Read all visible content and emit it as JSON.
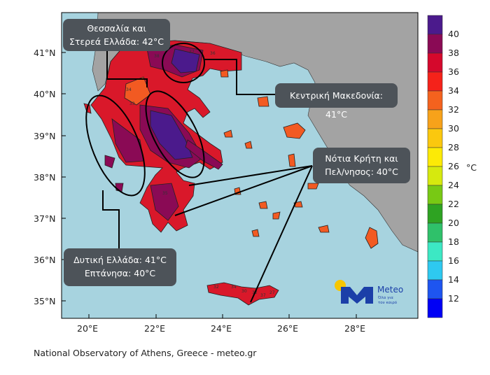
{
  "map": {
    "lat_ticks": [
      "41°N",
      "40°N",
      "39°N",
      "38°N",
      "37°N",
      "36°N",
      "35°N"
    ],
    "lon_ticks": [
      "20°E",
      "22°E",
      "24°E",
      "26°E",
      "28°E"
    ],
    "colors": {
      "sea": "#a7d3df",
      "foreign_land": "#a3a3a3",
      "hot": "#d9182a",
      "very_hot": "#8a0a55",
      "extreme": "#4b1a8c",
      "warm": "#f25a22"
    },
    "station_values": [
      "37",
      "36",
      "38",
      "34",
      "33",
      "35",
      "32",
      "34",
      "30",
      "32",
      "37",
      "27"
    ]
  },
  "annotations": [
    {
      "line1": "Θεσσαλία και",
      "line2": "Στερεά Ελλάδα: 42°C"
    },
    {
      "line1": "Κεντρική Μακεδονία: 41°C",
      "line2": ""
    },
    {
      "line1": "Νότια Κρήτη και",
      "line2": "Πελ/νησος: 40°C"
    },
    {
      "line1": "Δυτική Ελλάδα: 41°C",
      "line2": "Επτάνησα: 40°C"
    }
  ],
  "colorbar": {
    "unit": "°C",
    "labels": [
      "40",
      "38",
      "36",
      "34",
      "32",
      "30",
      "28",
      "26",
      "24",
      "22",
      "20",
      "18",
      "16",
      "14",
      "12"
    ],
    "colors": [
      "#4b1a8c",
      "#8a0a55",
      "#d5082c",
      "#f5221a",
      "#f4621e",
      "#f7a21a",
      "#fbc80e",
      "#fcea06",
      "#d6e90e",
      "#78c914",
      "#2ea322",
      "#2fc16a",
      "#3ce8c4",
      "#2ec9f0",
      "#1e55f0",
      "#0000f5"
    ]
  },
  "logo": {
    "name": "Meteo",
    "tagline_1": "Όλα για",
    "tagline_2": "τον καιρό",
    "blue": "#1b3fa8",
    "yellow": "#f7c600"
  },
  "footer": "National Observatory of Athens, Greece - meteo.gr"
}
